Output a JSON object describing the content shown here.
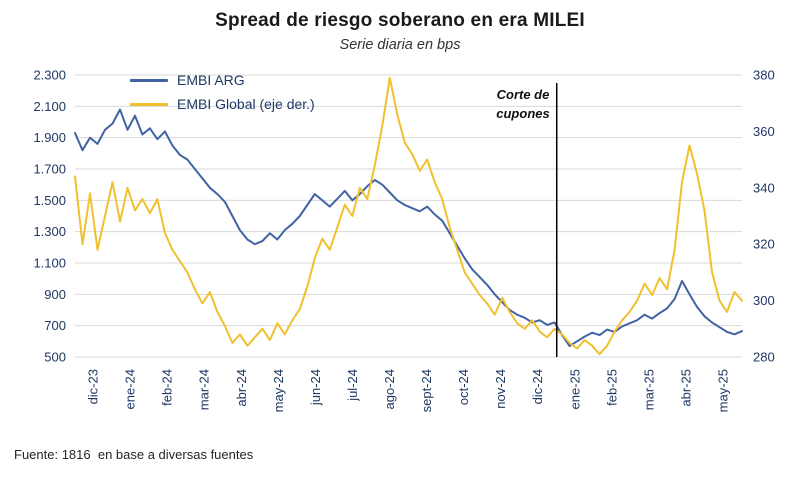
{
  "chart_data": {
    "type": "line",
    "title": "Spread de riesgo soberano en era MILEI",
    "subtitle": "Serie diaria en bps",
    "grid": true,
    "grid_color": "#D9D9D9",
    "tick_color": "#1F3864",
    "legend_position": "top-left-inside",
    "x_tick_labels": [
      "dic-23",
      "ene-24",
      "feb-24",
      "mar-24",
      "abr-24",
      "may-24",
      "jun-24",
      "jul-24",
      "ago-24",
      "sept-24",
      "oct-24",
      "nov-24",
      "dic-24",
      "ene-25",
      "feb-25",
      "mar-25",
      "abr-25",
      "may-25"
    ],
    "left_axis": {
      "min": 500,
      "max": 2300,
      "ticks": [
        500,
        700,
        900,
        1100,
        1300,
        1500,
        1700,
        1900,
        2100,
        2300
      ],
      "tick_labels": [
        "500",
        "700",
        "900",
        "1.100",
        "1.300",
        "1.500",
        "1.700",
        "1.900",
        "2.100",
        "2.300"
      ]
    },
    "right_axis": {
      "min": 280,
      "max": 380,
      "ticks": [
        280,
        300,
        320,
        340,
        360,
        380
      ],
      "tick_labels": [
        "280",
        "300",
        "320",
        "340",
        "360",
        "380"
      ]
    },
    "series": [
      {
        "name": "EMBI ARG",
        "axis": "left",
        "color": "#4263A3",
        "values": [
          1930,
          1820,
          1900,
          1860,
          1950,
          1990,
          2080,
          1950,
          2040,
          1920,
          1960,
          1890,
          1940,
          1850,
          1790,
          1760,
          1700,
          1640,
          1580,
          1540,
          1490,
          1400,
          1310,
          1250,
          1220,
          1240,
          1290,
          1250,
          1310,
          1350,
          1400,
          1470,
          1540,
          1500,
          1460,
          1510,
          1560,
          1500,
          1540,
          1590,
          1630,
          1600,
          1550,
          1500,
          1470,
          1450,
          1430,
          1460,
          1410,
          1370,
          1290,
          1210,
          1130,
          1060,
          1010,
          960,
          900,
          850,
          800,
          770,
          750,
          720,
          735,
          705,
          720,
          640,
          570,
          600,
          630,
          655,
          640,
          675,
          660,
          695,
          715,
          735,
          770,
          745,
          780,
          810,
          870,
          985,
          900,
          820,
          760,
          720,
          690,
          660,
          645,
          665
        ]
      },
      {
        "name": "EMBI Global (eje der.)",
        "axis": "right",
        "color": "#F0C02F",
        "values": [
          344,
          320,
          338,
          318,
          330,
          342,
          328,
          340,
          332,
          336,
          331,
          336,
          324,
          318,
          314,
          310,
          304,
          299,
          303,
          296,
          291,
          285,
          288,
          284,
          287,
          290,
          286,
          292,
          288,
          293,
          297,
          305,
          315,
          322,
          318,
          326,
          334,
          330,
          340,
          336,
          348,
          362,
          379,
          366,
          356,
          352,
          346,
          350,
          342,
          336,
          326,
          318,
          310,
          306,
          302,
          299,
          295,
          301,
          296,
          292,
          290,
          293,
          289,
          287,
          290,
          288,
          285,
          283,
          286,
          284,
          281,
          284,
          289,
          293,
          296,
          300,
          306,
          302,
          308,
          304,
          318,
          342,
          355,
          345,
          332,
          310,
          300,
          296,
          303,
          300
        ]
      }
    ],
    "annotation": {
      "label": "Corte de\ncupones",
      "x_month_index": 13
    }
  },
  "footer": {
    "source": "Fuente: 1816  en base a diversas fuentes"
  }
}
